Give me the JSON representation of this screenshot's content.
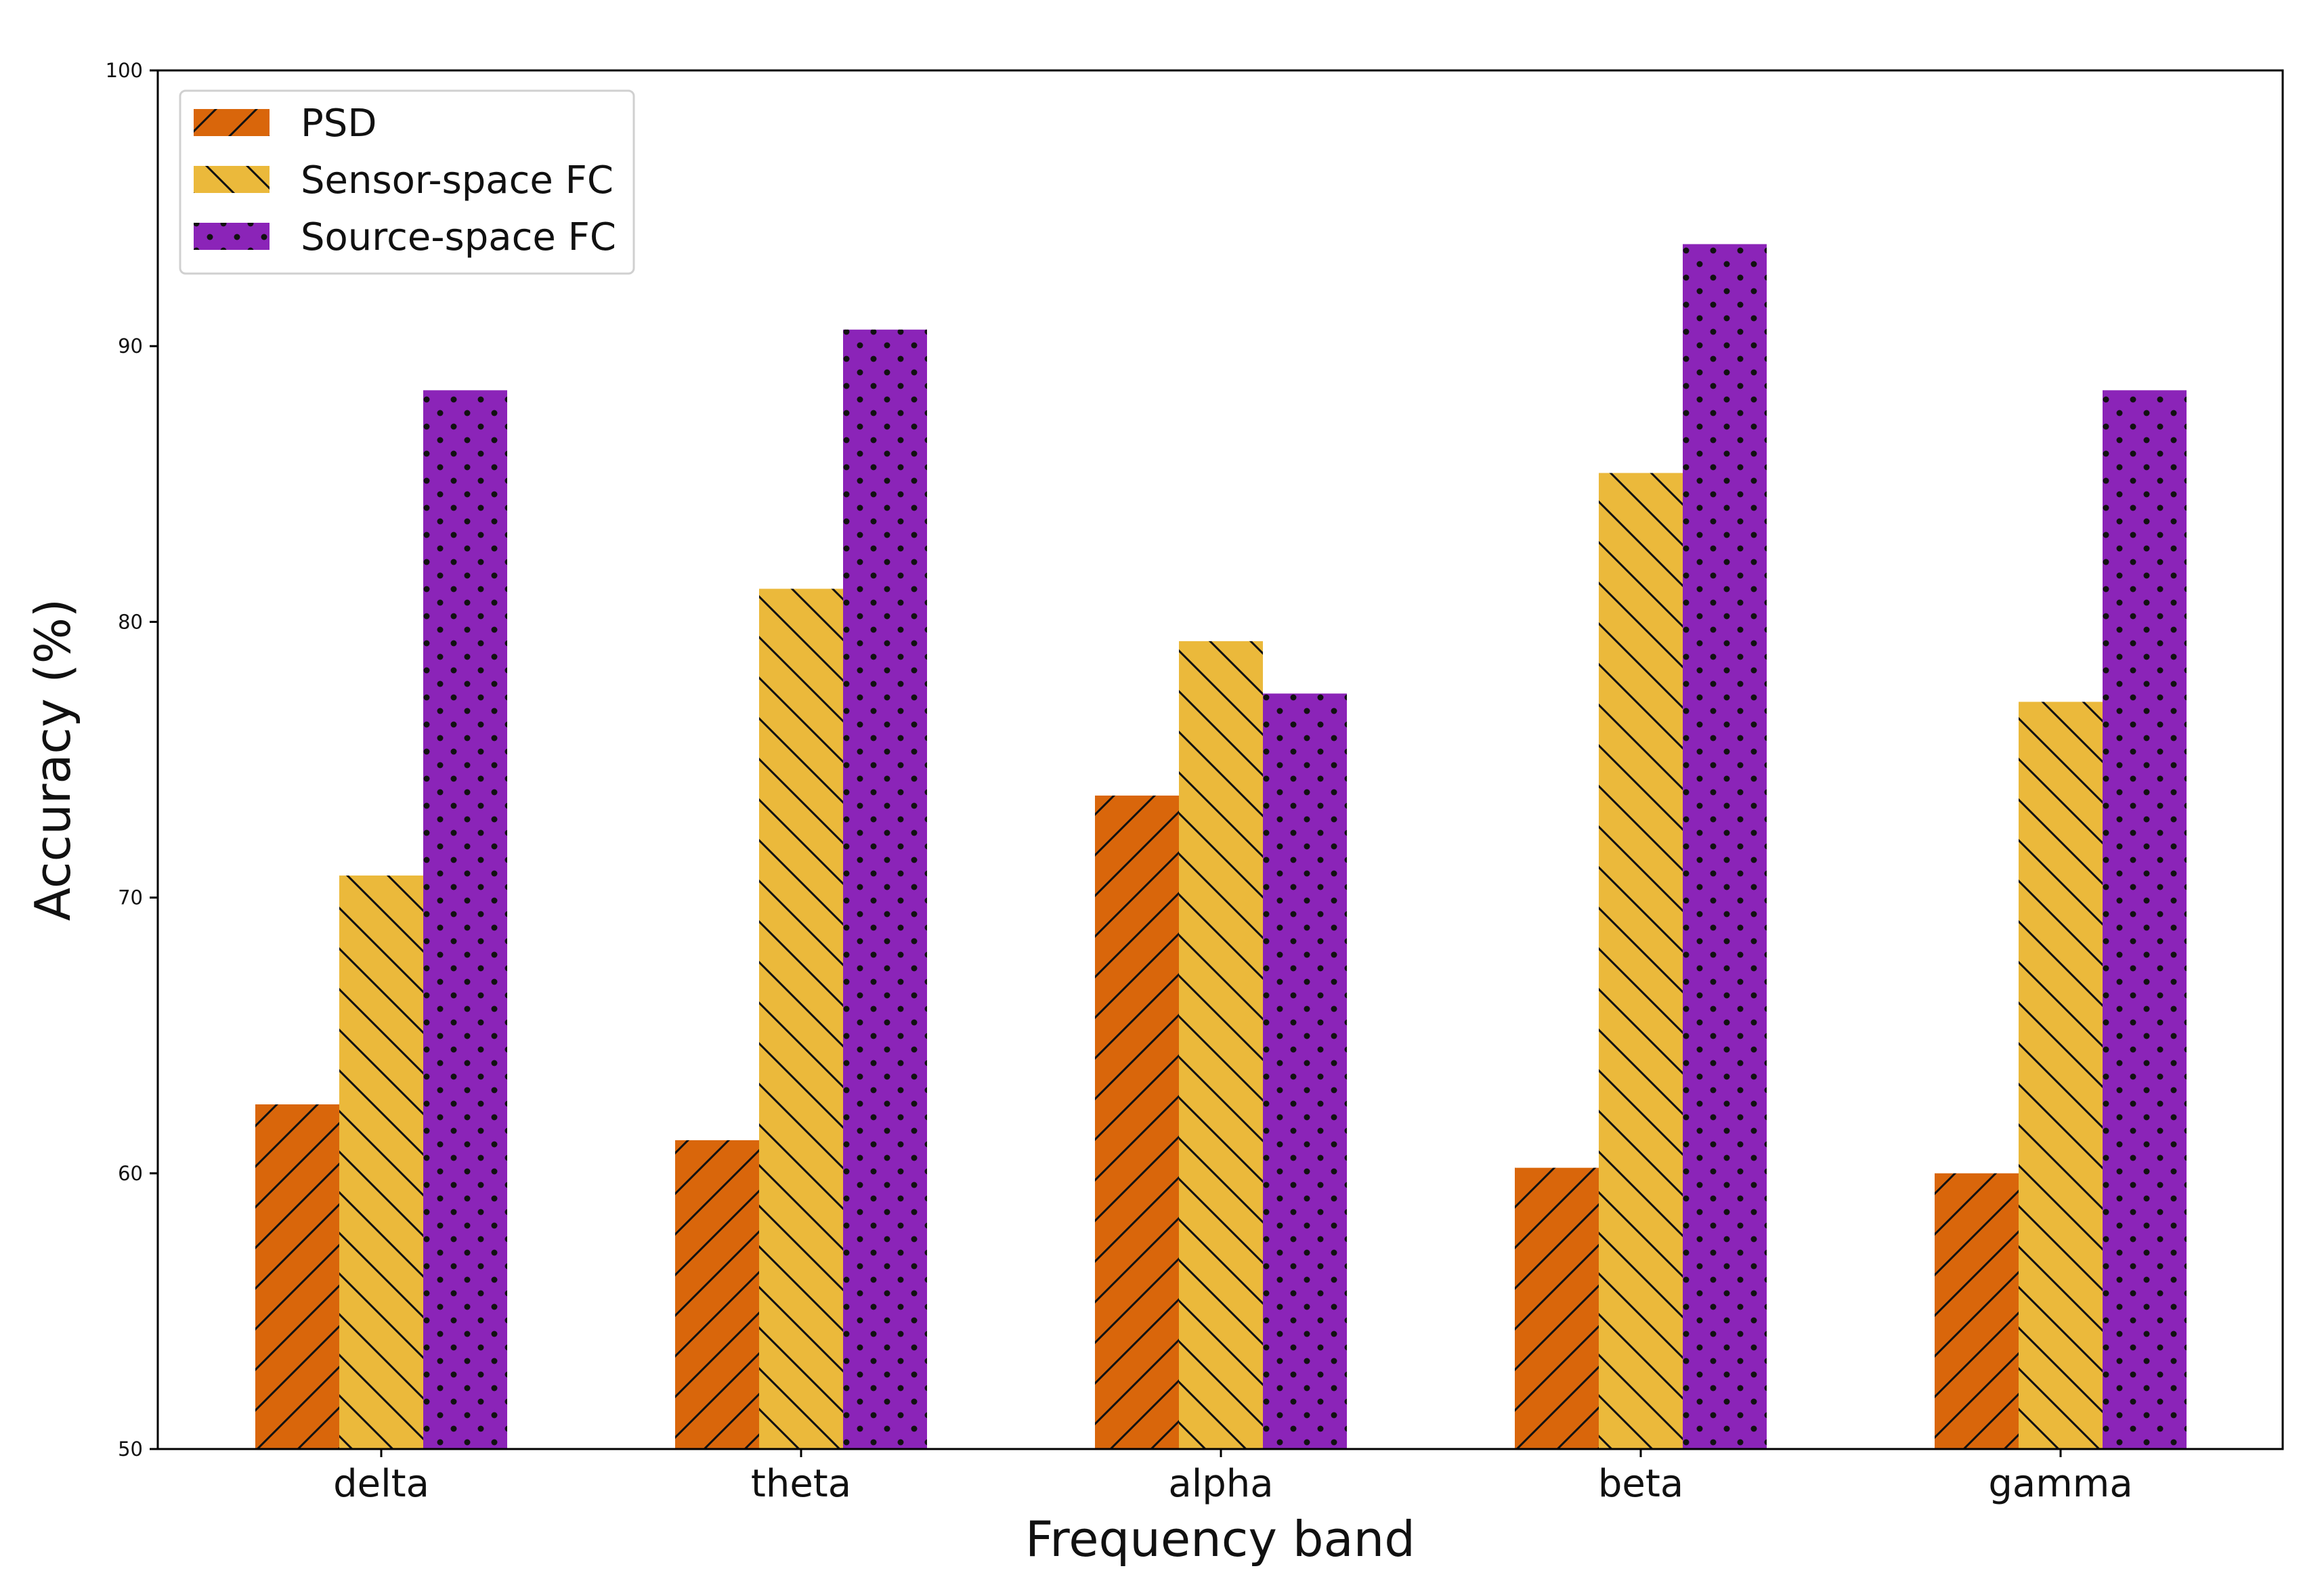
{
  "chart_data": {
    "type": "bar",
    "title": "",
    "xlabel": "Frequency band",
    "ylabel": "Accuracy (%)",
    "ylim": [
      50,
      100
    ],
    "yticks": [
      50,
      60,
      70,
      80,
      90,
      100
    ],
    "categories": [
      "delta",
      "theta",
      "alpha",
      "beta",
      "gamma"
    ],
    "grid": false,
    "legend_position": "top-left",
    "series": [
      {
        "name": "PSD",
        "color": "#d9660b",
        "hatch": "forward-diagonal",
        "values": [
          62.5,
          61.2,
          73.7,
          60.2,
          60.0
        ]
      },
      {
        "name": "Sensor-space FC",
        "color": "#ebb93b",
        "hatch": "backward-diagonal",
        "values": [
          70.8,
          81.2,
          79.3,
          85.4,
          77.1
        ]
      },
      {
        "name": "Source-space FC",
        "color": "#8b24b8",
        "hatch": "dots",
        "values": [
          88.4,
          90.6,
          77.4,
          93.7,
          88.4
        ]
      }
    ]
  }
}
